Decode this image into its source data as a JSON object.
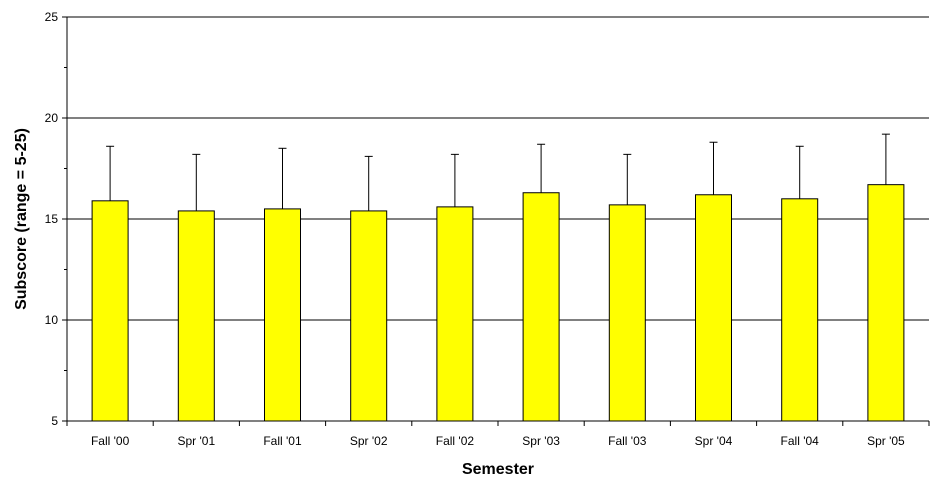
{
  "chart_data": {
    "type": "bar",
    "title": "",
    "xlabel": "Semester",
    "ylabel": "Subscore (range = 5-25)",
    "categories": [
      "Fall '00",
      "Spr '01",
      "Fall '01",
      "Spr '02",
      "Fall '02",
      "Spr '03",
      "Fall '03",
      "Spr '04",
      "Fall '04",
      "Spr '05"
    ],
    "values": [
      15.9,
      15.4,
      15.5,
      15.4,
      15.6,
      16.3,
      15.7,
      16.2,
      16.0,
      16.7
    ],
    "error_upper": [
      2.7,
      2.8,
      3.0,
      2.7,
      2.6,
      2.4,
      2.5,
      2.6,
      2.6,
      2.5
    ],
    "ylim": [
      5,
      25
    ],
    "yticks": [
      5,
      10,
      15,
      20,
      25
    ],
    "grid": true,
    "colors": {
      "bar": "#ffff00",
      "bar_stroke": "#000000",
      "grid": "#000000"
    }
  }
}
